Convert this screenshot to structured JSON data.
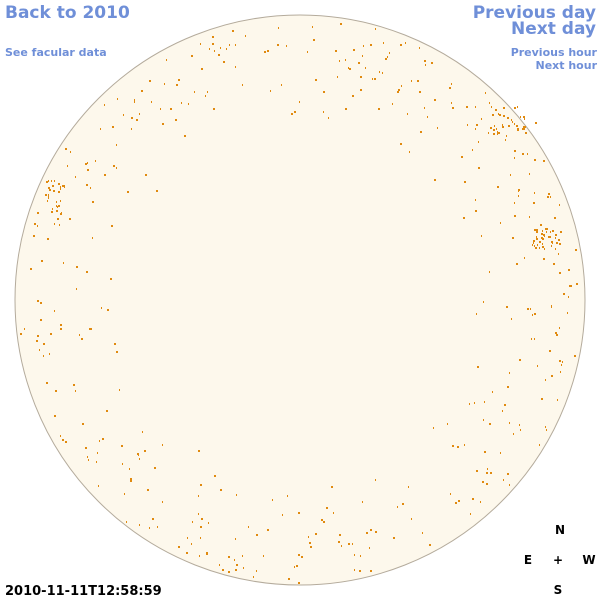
{
  "links": {
    "back": "Back to 2010",
    "facular": "See facular data",
    "previous_day": "Previous day",
    "next_day": "Next day",
    "previous_hour": "Previous hour",
    "next_hour": "Next hour"
  },
  "timestamp": "2010-11-11T12:58:59",
  "compass": {
    "north": "N",
    "east": "E",
    "center": "+",
    "west": "W",
    "south": "S"
  }
}
